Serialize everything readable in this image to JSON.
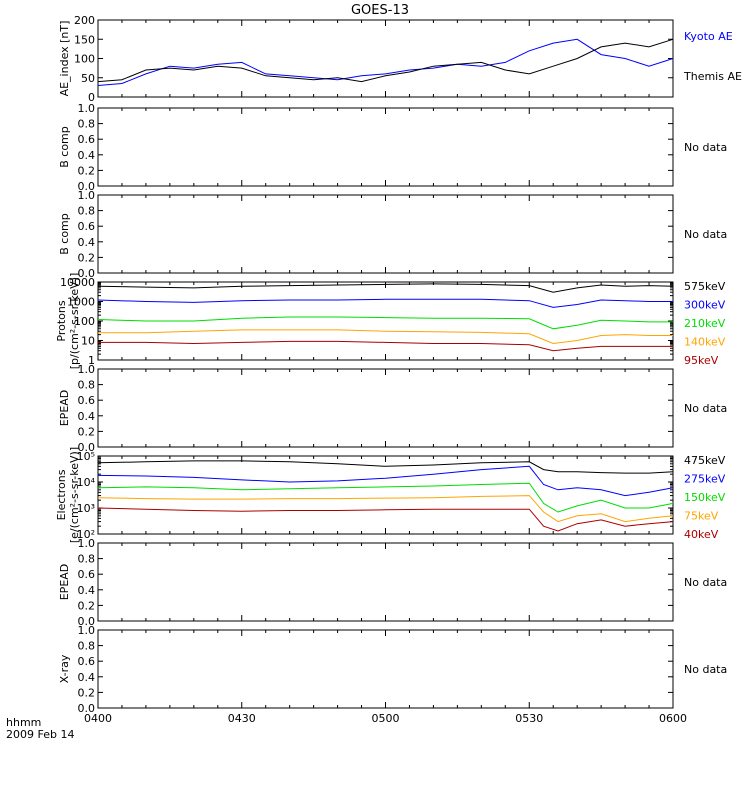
{
  "title": "GOES-13",
  "time_axis": {
    "label_line1": "hhmm",
    "label_line2": "2009 Feb 14",
    "ticks": [
      "0400",
      "0430",
      "0500",
      "0530",
      "0600"
    ],
    "start_minutes": 240,
    "end_minutes": 360
  },
  "colors": {
    "black": "#000000",
    "blue": "#0000ff",
    "green": "#00dd00",
    "orange": "#ffa500",
    "red": "#a52a2a",
    "darkred": "#aa0000"
  },
  "chart_data": [
    {
      "id": "ae",
      "type": "line",
      "ylabel": "AE_index [nT]",
      "ylim": [
        0,
        200
      ],
      "yticks": [
        "0",
        "50",
        "100",
        "150",
        "200"
      ],
      "scale": "linear",
      "x": [
        240,
        245,
        250,
        255,
        260,
        265,
        270,
        275,
        280,
        285,
        290,
        295,
        300,
        305,
        310,
        315,
        320,
        325,
        330,
        335,
        340,
        345,
        350,
        355,
        360
      ],
      "series": [
        {
          "name": "Kyoto AE",
          "color": "#0000ff",
          "values": [
            30,
            35,
            60,
            80,
            75,
            85,
            90,
            60,
            55,
            50,
            45,
            55,
            60,
            70,
            75,
            85,
            80,
            90,
            120,
            140,
            150,
            110,
            100,
            80,
            100
          ]
        },
        {
          "name": "Themis AE",
          "color": "#000000",
          "values": [
            40,
            45,
            70,
            75,
            70,
            80,
            75,
            55,
            50,
            45,
            50,
            40,
            55,
            65,
            80,
            85,
            90,
            70,
            60,
            80,
            100,
            130,
            140,
            130,
            150
          ]
        }
      ]
    },
    {
      "id": "bcomp1",
      "ylabel": "B comp",
      "nodata": "No data",
      "ylim": [
        0,
        1
      ],
      "yticks": [
        "0.0",
        "0.2",
        "0.4",
        "0.6",
        "0.8",
        "1.0"
      ],
      "scale": "linear"
    },
    {
      "id": "bcomp2",
      "ylabel": "B comp",
      "nodata": "No data",
      "ylim": [
        0,
        1
      ],
      "yticks": [
        "0.0",
        "0.2",
        "0.4",
        "0.6",
        "0.8",
        "1.0"
      ],
      "scale": "linear"
    },
    {
      "id": "protons",
      "type": "line",
      "ylabel": "Protons",
      "ylabel2": "[p/(cm²-s-sr-keV)]",
      "ylim": [
        1,
        10000
      ],
      "scale": "log",
      "yticks": [
        "1",
        "10",
        "100",
        "1000",
        "10000"
      ],
      "x": [
        240,
        250,
        260,
        270,
        280,
        290,
        300,
        310,
        320,
        330,
        335,
        340,
        345,
        350,
        355,
        360
      ],
      "series": [
        {
          "name": "575keV",
          "color": "#000000",
          "values": [
            6000,
            5500,
            5000,
            6000,
            6500,
            7000,
            7500,
            8000,
            7500,
            6500,
            3000,
            5000,
            7000,
            6000,
            6500,
            6000
          ]
        },
        {
          "name": "300keV",
          "color": "#0000ff",
          "values": [
            1200,
            1000,
            900,
            1100,
            1200,
            1200,
            1300,
            1300,
            1300,
            1100,
            500,
            700,
            1200,
            1100,
            1000,
            1000
          ]
        },
        {
          "name": "210keV",
          "color": "#00dd00",
          "values": [
            120,
            100,
            100,
            140,
            160,
            160,
            150,
            140,
            140,
            130,
            40,
            60,
            110,
            100,
            90,
            90
          ]
        },
        {
          "name": "140keV",
          "color": "#ffa500",
          "values": [
            25,
            25,
            30,
            35,
            35,
            35,
            30,
            28,
            26,
            22,
            7,
            10,
            18,
            20,
            18,
            18
          ]
        },
        {
          "name": "95keV",
          "color": "#aa0000",
          "values": [
            8,
            8,
            7,
            8,
            9,
            9,
            8,
            7,
            7,
            6,
            3,
            4,
            5,
            5,
            5,
            5
          ]
        }
      ]
    },
    {
      "id": "epead1",
      "ylabel": "EPEAD",
      "nodata": "No data",
      "ylim": [
        0,
        1
      ],
      "yticks": [
        "0.0",
        "0.2",
        "0.4",
        "0.6",
        "0.8",
        "1.0"
      ],
      "scale": "linear"
    },
    {
      "id": "electrons",
      "type": "line",
      "ylabel": "Electrons",
      "ylabel2": "[e/(cm²-s-sr-keV)]",
      "ylim": [
        100,
        100000
      ],
      "scale": "log",
      "yticks": [
        "10²",
        "10³",
        "10⁴",
        "10⁵"
      ],
      "x": [
        240,
        250,
        260,
        270,
        280,
        290,
        300,
        310,
        320,
        330,
        333,
        336,
        340,
        345,
        350,
        355,
        360
      ],
      "series": [
        {
          "name": "475keV",
          "color": "#000000",
          "values": [
            55000,
            60000,
            65000,
            65000,
            60000,
            50000,
            40000,
            45000,
            55000,
            60000,
            30000,
            25000,
            25000,
            23000,
            22000,
            22000,
            25000
          ]
        },
        {
          "name": "275keV",
          "color": "#0000ff",
          "values": [
            18000,
            17000,
            15000,
            12000,
            10000,
            11000,
            14000,
            20000,
            30000,
            40000,
            8000,
            5000,
            6000,
            5000,
            3000,
            4000,
            6000
          ]
        },
        {
          "name": "150keV",
          "color": "#00dd00",
          "values": [
            6000,
            6500,
            6000,
            5000,
            5500,
            6000,
            6500,
            7000,
            8000,
            9000,
            1500,
            700,
            1200,
            2000,
            1000,
            1000,
            1500
          ]
        },
        {
          "name": "75keV",
          "color": "#ffa500",
          "values": [
            2500,
            2300,
            2200,
            2200,
            2300,
            2300,
            2400,
            2500,
            2800,
            3000,
            700,
            300,
            500,
            600,
            300,
            400,
            500
          ]
        },
        {
          "name": "40keV",
          "color": "#aa0000",
          "values": [
            1000,
            900,
            800,
            750,
            800,
            800,
            850,
            900,
            900,
            900,
            200,
            130,
            250,
            350,
            200,
            250,
            300
          ]
        }
      ]
    },
    {
      "id": "epead2",
      "ylabel": "EPEAD",
      "nodata": "No data",
      "ylim": [
        0,
        1
      ],
      "yticks": [
        "0.0",
        "0.2",
        "0.4",
        "0.6",
        "0.8",
        "1.0"
      ],
      "scale": "linear"
    },
    {
      "id": "xray",
      "ylabel": "X-ray",
      "nodata": "No data",
      "ylim": [
        0,
        1
      ],
      "yticks": [
        "0.0",
        "0.2",
        "0.4",
        "0.6",
        "0.8",
        "1.0"
      ],
      "scale": "linear"
    }
  ]
}
